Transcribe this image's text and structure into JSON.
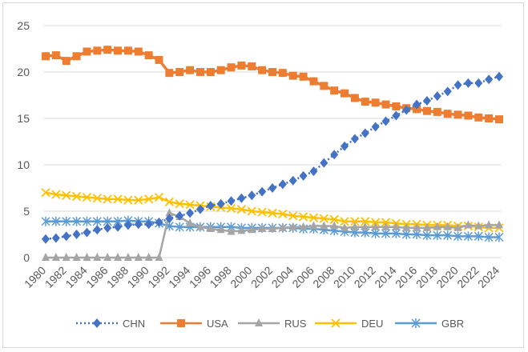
{
  "chart_data": {
    "type": "line",
    "title": "",
    "xlabel": "",
    "ylabel": "",
    "ylim": [
      0,
      25
    ],
    "yticks": [
      0,
      5,
      10,
      15,
      20,
      25
    ],
    "x": [
      1980,
      1981,
      1982,
      1983,
      1984,
      1985,
      1986,
      1987,
      1988,
      1989,
      1990,
      1991,
      1992,
      1993,
      1994,
      1995,
      1996,
      1997,
      1998,
      1999,
      2000,
      2001,
      2002,
      2003,
      2004,
      2005,
      2006,
      2007,
      2008,
      2009,
      2010,
      2011,
      2012,
      2013,
      2014,
      2015,
      2016,
      2017,
      2018,
      2019,
      2020,
      2021,
      2022,
      2023,
      2024
    ],
    "xtick_labels": [
      "1980",
      "1982",
      "1984",
      "1986",
      "1988",
      "1990",
      "1992",
      "1994",
      "1996",
      "1998",
      "2000",
      "2002",
      "2004",
      "2006",
      "2008",
      "2010",
      "2012",
      "2014",
      "2016",
      "2018",
      "2020",
      "2022",
      "2024"
    ],
    "grid": "horizontal",
    "legend_position": "bottom",
    "series": [
      {
        "name": "CHN",
        "color": "#4472c4",
        "marker": "diamond",
        "dash": "dotted",
        "values": [
          2.0,
          2.1,
          2.3,
          2.5,
          2.7,
          3.0,
          3.2,
          3.3,
          3.5,
          3.6,
          3.6,
          3.8,
          4.2,
          4.5,
          4.8,
          5.2,
          5.6,
          5.8,
          6.1,
          6.4,
          6.7,
          7.1,
          7.5,
          7.9,
          8.3,
          8.8,
          9.3,
          10.2,
          11.1,
          12.0,
          12.8,
          13.4,
          14.1,
          14.7,
          15.3,
          15.9,
          16.5,
          16.9,
          17.4,
          17.9,
          18.6,
          18.8,
          18.8,
          19.2,
          19.5
        ]
      },
      {
        "name": "USA",
        "color": "#ed7d31",
        "marker": "square",
        "dash": "solid",
        "values": [
          21.7,
          21.8,
          21.2,
          21.7,
          22.2,
          22.3,
          22.4,
          22.3,
          22.3,
          22.2,
          21.8,
          21.3,
          19.9,
          20.0,
          20.2,
          20.0,
          20.0,
          20.2,
          20.5,
          20.7,
          20.6,
          20.2,
          20.0,
          19.9,
          19.6,
          19.5,
          19.0,
          18.5,
          18.0,
          17.7,
          17.2,
          16.8,
          16.7,
          16.5,
          16.3,
          16.1,
          16.0,
          15.8,
          15.7,
          15.5,
          15.4,
          15.3,
          15.1,
          15.0,
          14.9
        ]
      },
      {
        "name": "RUS",
        "color": "#a5a5a5",
        "marker": "triangle",
        "dash": "solid",
        "values": [
          0,
          0,
          0,
          0,
          0,
          0,
          0,
          0,
          0,
          0,
          0,
          0,
          4.8,
          4.4,
          3.7,
          3.3,
          3.1,
          3.0,
          2.8,
          2.9,
          3.0,
          3.1,
          3.1,
          3.2,
          3.3,
          3.3,
          3.4,
          3.4,
          3.4,
          3.2,
          3.3,
          3.3,
          3.3,
          3.3,
          3.3,
          3.2,
          3.2,
          3.2,
          3.3,
          3.3,
          3.2,
          3.5,
          3.4,
          3.5,
          3.5
        ]
      },
      {
        "name": "DEU",
        "color": "#ffc000",
        "marker": "x",
        "dash": "solid",
        "values": [
          7.0,
          6.8,
          6.7,
          6.6,
          6.5,
          6.4,
          6.3,
          6.3,
          6.2,
          6.2,
          6.3,
          6.5,
          6.0,
          5.8,
          5.7,
          5.6,
          5.5,
          5.4,
          5.3,
          5.2,
          5.0,
          4.9,
          4.8,
          4.7,
          4.5,
          4.4,
          4.3,
          4.2,
          4.1,
          3.9,
          3.9,
          3.9,
          3.8,
          3.8,
          3.7,
          3.6,
          3.6,
          3.5,
          3.5,
          3.5,
          3.4,
          3.4,
          3.3,
          3.2,
          3.2
        ]
      },
      {
        "name": "GBR",
        "color": "#5b9bd5",
        "marker": "star",
        "dash": "solid",
        "values": [
          3.9,
          3.9,
          3.9,
          3.9,
          3.9,
          3.9,
          3.9,
          3.9,
          4.0,
          3.9,
          3.9,
          3.7,
          3.4,
          3.3,
          3.3,
          3.3,
          3.3,
          3.3,
          3.3,
          3.2,
          3.2,
          3.2,
          3.2,
          3.2,
          3.2,
          3.1,
          3.1,
          3.0,
          2.9,
          2.8,
          2.7,
          2.7,
          2.6,
          2.6,
          2.6,
          2.5,
          2.5,
          2.4,
          2.4,
          2.4,
          2.3,
          2.3,
          2.3,
          2.2,
          2.2
        ]
      }
    ]
  }
}
